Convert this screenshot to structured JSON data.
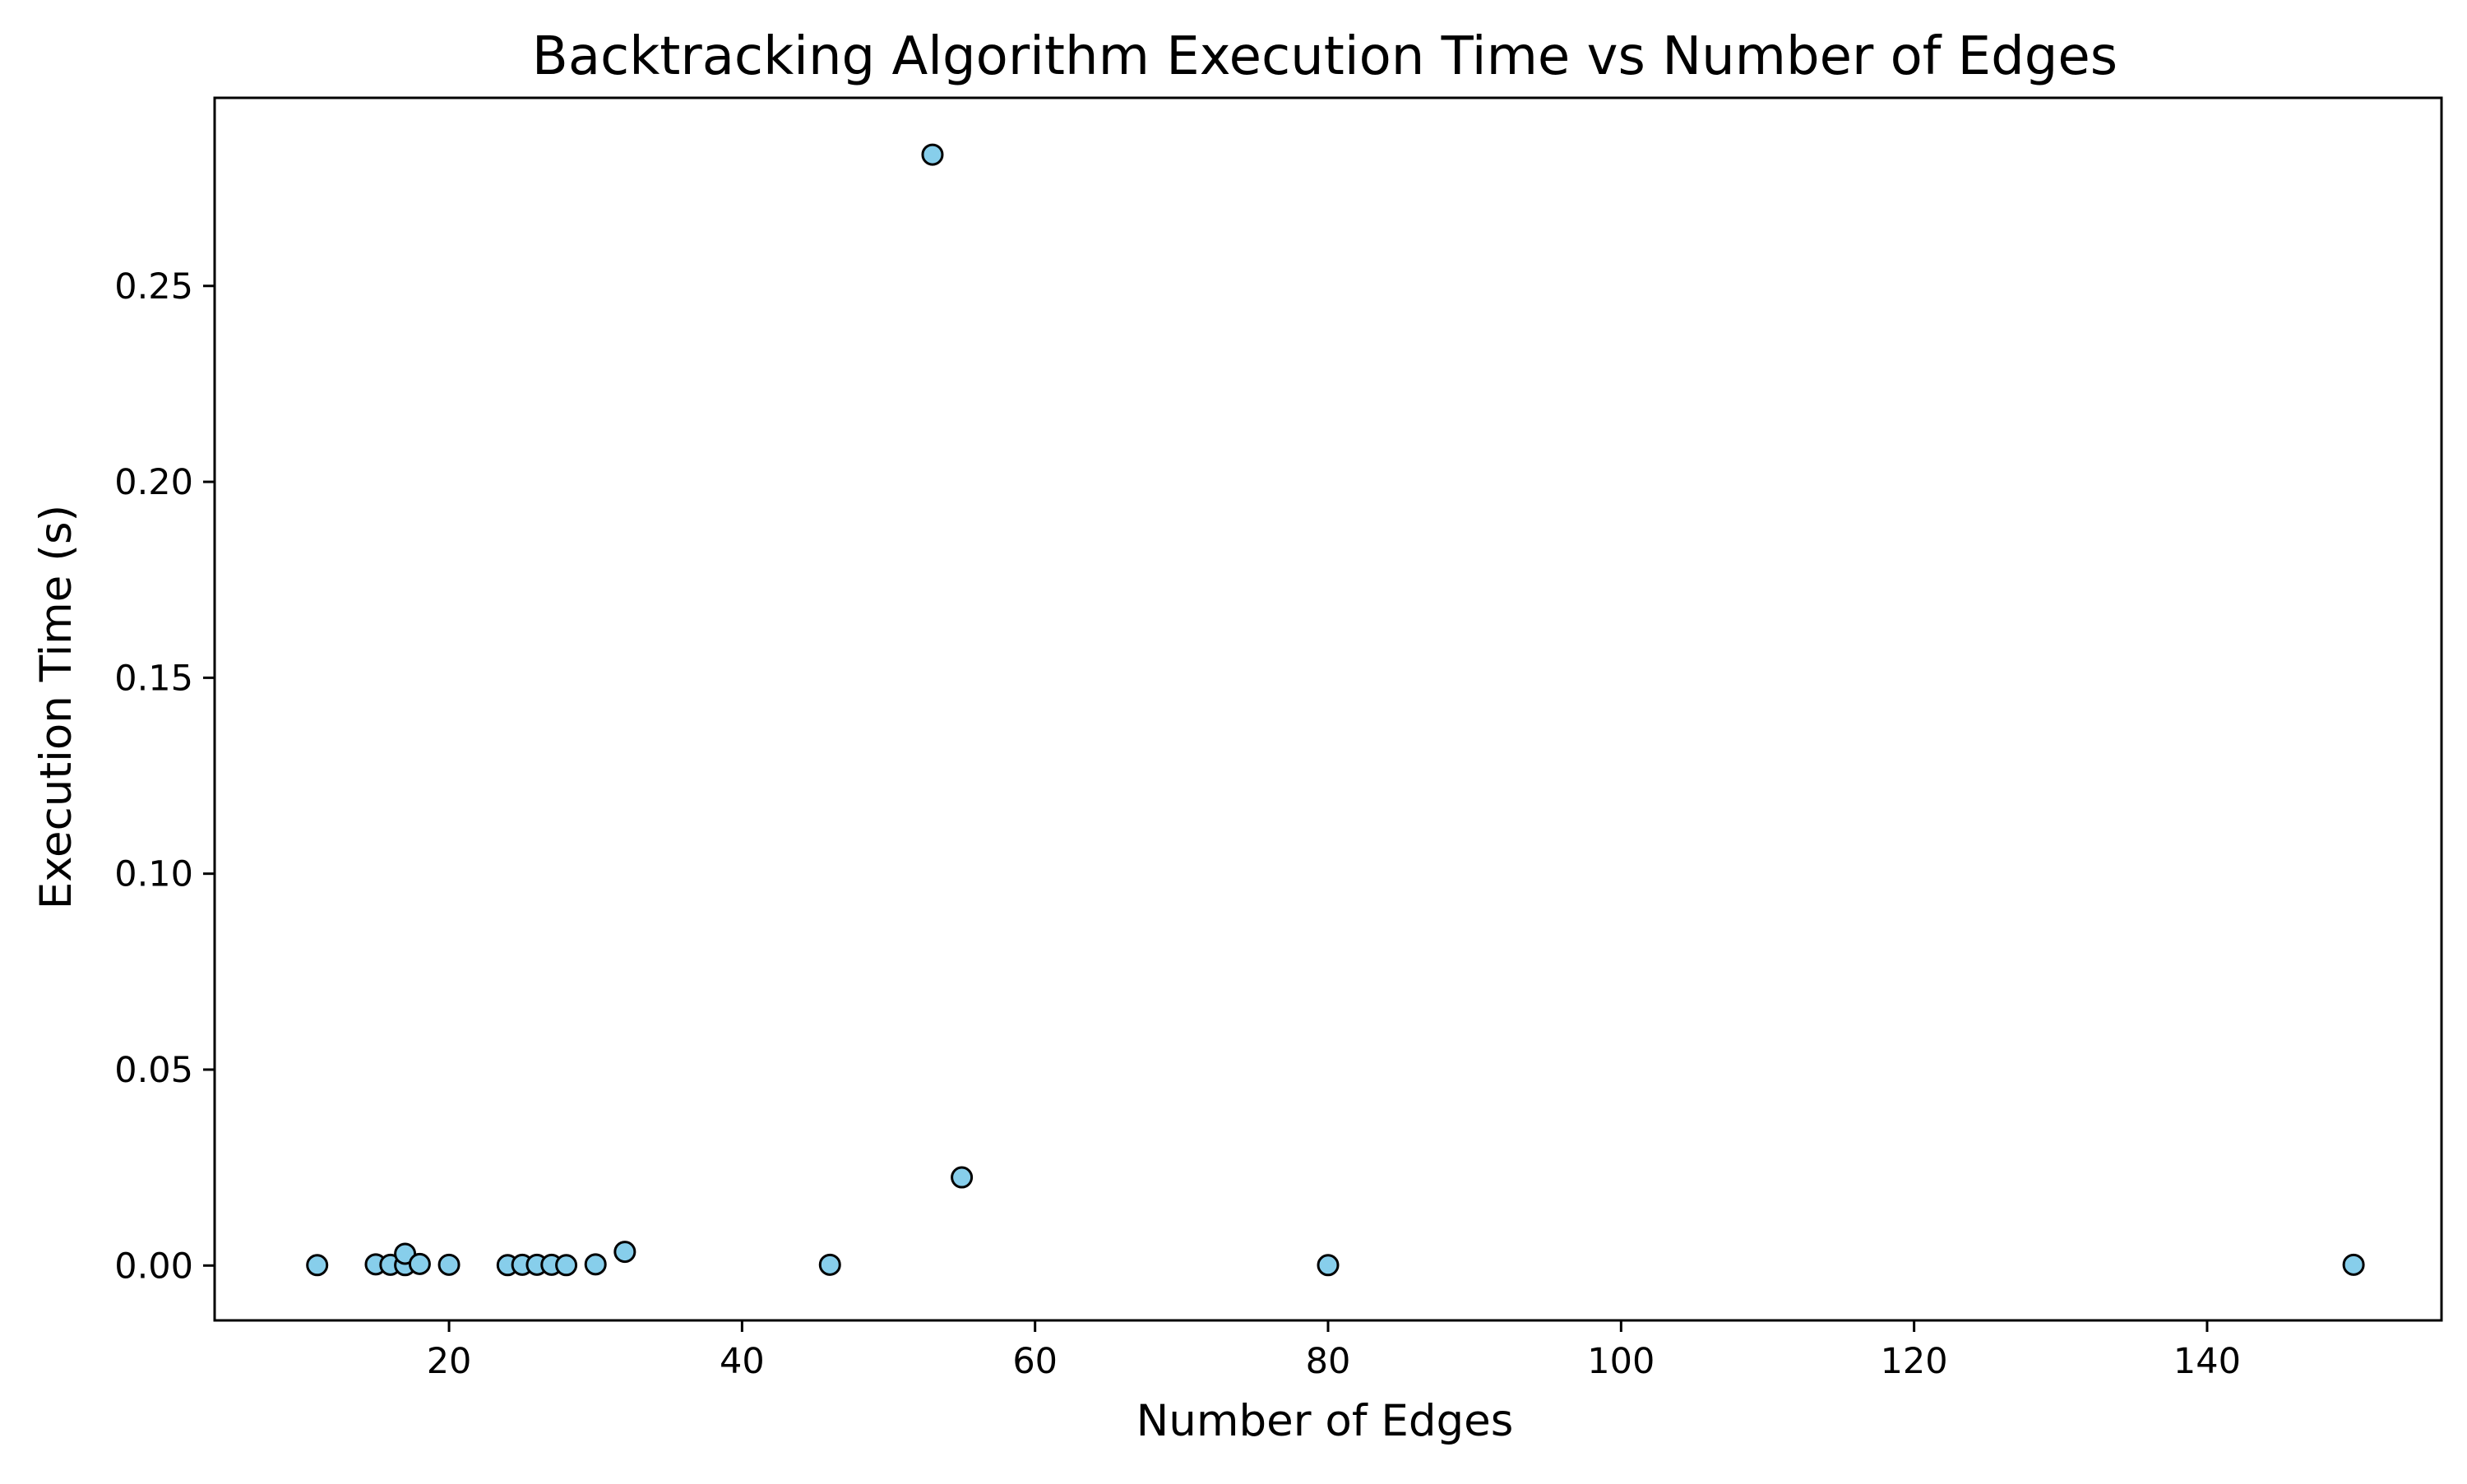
{
  "chart_data": {
    "type": "scatter",
    "title": "Backtracking Algorithm Execution Time vs Number of Edges",
    "xlabel": "Number of Edges",
    "ylabel": "Execution Time (s)",
    "xlim": [
      4,
      156
    ],
    "ylim": [
      -0.014,
      0.298
    ],
    "xticks": [
      20,
      40,
      60,
      80,
      100,
      120,
      140
    ],
    "xtick_labels": [
      "20",
      "40",
      "60",
      "80",
      100,
      "120",
      "140"
    ],
    "yticks": [
      0.0,
      0.05,
      0.1,
      0.15,
      0.2,
      0.25
    ],
    "ytick_labels": [
      "0.00",
      "0.05",
      "0.10",
      "0.15",
      "0.20",
      "0.25"
    ],
    "grid": false,
    "legend": false,
    "marker_color": "#87ceeb",
    "marker_edge_color": "#000000",
    "points": [
      {
        "x": 11,
        "y": 0.0001
      },
      {
        "x": 15,
        "y": 0.0003
      },
      {
        "x": 16,
        "y": 0.0002
      },
      {
        "x": 17,
        "y": 0.0001
      },
      {
        "x": 17,
        "y": 0.003
      },
      {
        "x": 18,
        "y": 0.0004
      },
      {
        "x": 20,
        "y": 0.0002
      },
      {
        "x": 24,
        "y": 0.0001
      },
      {
        "x": 25,
        "y": 0.0002
      },
      {
        "x": 26,
        "y": 0.0002
      },
      {
        "x": 27,
        "y": 0.0002
      },
      {
        "x": 28,
        "y": 0.0001
      },
      {
        "x": 30,
        "y": 0.0003
      },
      {
        "x": 32,
        "y": 0.0035
      },
      {
        "x": 46,
        "y": 0.0002
      },
      {
        "x": 53,
        "y": 0.2835
      },
      {
        "x": 55,
        "y": 0.0225
      },
      {
        "x": 80,
        "y": 0.0001
      },
      {
        "x": 150,
        "y": 0.0002
      }
    ]
  }
}
